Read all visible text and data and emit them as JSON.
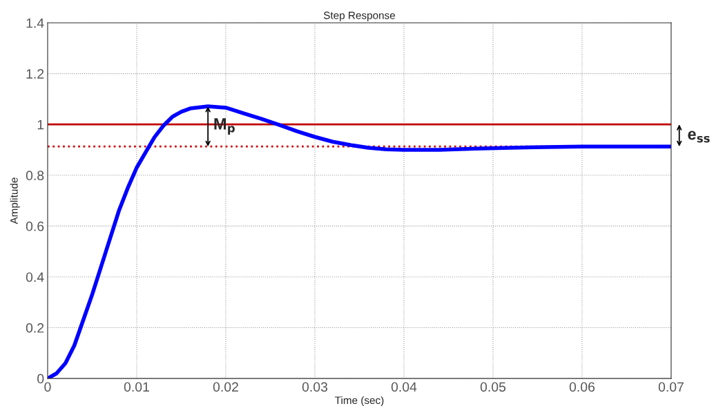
{
  "chart_data": {
    "type": "line",
    "title": "Step Response",
    "xlabel": "Time (sec)",
    "ylabel": "Amplitude",
    "x": [
      0,
      0.001,
      0.002,
      0.003,
      0.004,
      0.005,
      0.006,
      0.007,
      0.008,
      0.009,
      0.01,
      0.011,
      0.012,
      0.013,
      0.014,
      0.015,
      0.016,
      0.018,
      0.02,
      0.022,
      0.024,
      0.026,
      0.028,
      0.03,
      0.032,
      0.034,
      0.036,
      0.038,
      0.04,
      0.044,
      0.048,
      0.052,
      0.056,
      0.06,
      0.07
    ],
    "series": [
      {
        "color": "#0000ff",
        "values": [
          0,
          0.02,
          0.06,
          0.13,
          0.23,
          0.33,
          0.44,
          0.55,
          0.66,
          0.75,
          0.83,
          0.89,
          0.95,
          0.995,
          1.03,
          1.05,
          1.063,
          1.071,
          1.066,
          1.044,
          1.022,
          0.998,
          0.973,
          0.951,
          0.932,
          0.919,
          0.908,
          0.902,
          0.9,
          0.9,
          0.905,
          0.908,
          0.911,
          0.913,
          0.913
        ]
      }
    ],
    "xlim": [
      0,
      0.07
    ],
    "xticks": [
      0,
      0.01,
      0.02,
      0.03,
      0.04,
      0.05,
      0.06,
      0.07
    ],
    "ylim": [
      0,
      1.4
    ],
    "yticks": [
      0,
      0.2,
      0.4,
      0.6,
      0.8,
      1,
      1.2,
      1.4
    ],
    "grid": true,
    "marker": "none",
    "line_style": "solid",
    "ref_lines": [
      {
        "axis": "y",
        "value": 1,
        "color": "#c00000",
        "line_style": "solid"
      },
      {
        "axis": "y",
        "value": 0.913,
        "color": "#d00000",
        "line_style": "dotted"
      }
    ],
    "annotations": [
      {
        "text": "M$_{p}$",
        "x": 0.018,
        "y": 1.071
      },
      "e$_{ss}$"
    ]
  }
}
